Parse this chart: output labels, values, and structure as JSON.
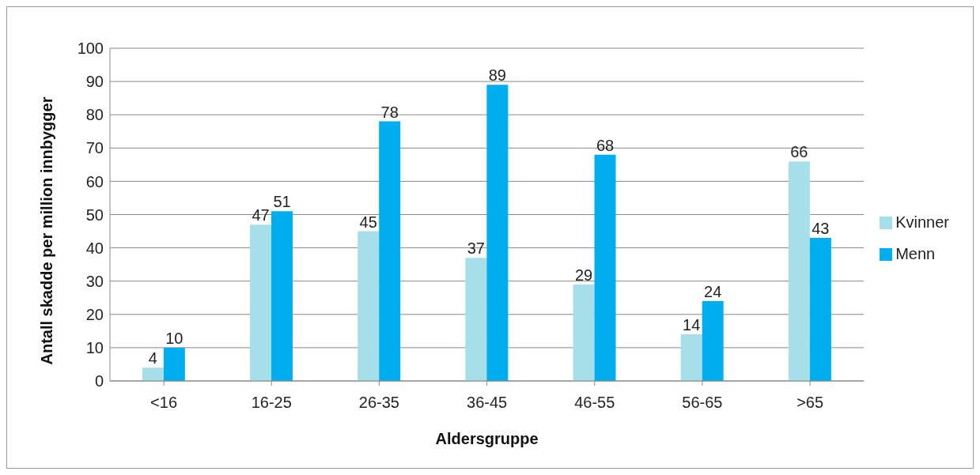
{
  "chart_data": {
    "type": "bar",
    "xlabel": "Aldersgruppe",
    "ylabel": "Antall skadde per million innbygger",
    "categories": [
      "<16",
      "16-25",
      "26-35",
      "36-45",
      "46-55",
      "56-65",
      ">65"
    ],
    "series": [
      {
        "name": "Kvinner",
        "color": "#a6dfea",
        "values": [
          4,
          47,
          45,
          37,
          29,
          14,
          66
        ]
      },
      {
        "name": "Menn",
        "color": "#00adef",
        "values": [
          10,
          51,
          78,
          89,
          68,
          24,
          43
        ]
      }
    ],
    "ylim": [
      0,
      100
    ],
    "yticks": [
      0,
      10,
      20,
      30,
      40,
      50,
      60,
      70,
      80,
      90,
      100
    ],
    "grid": "y",
    "legend": "right",
    "data_labels": true
  }
}
